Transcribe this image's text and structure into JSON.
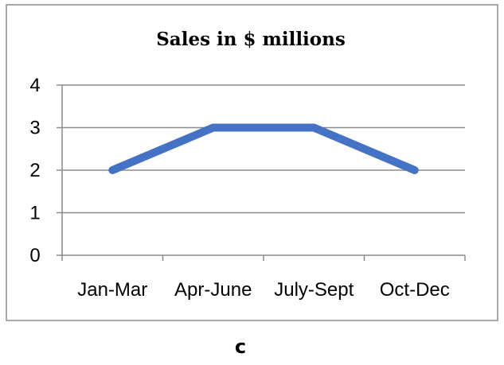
{
  "chart_data": {
    "type": "line",
    "title": "Sales in $ millions",
    "categories": [
      "Jan-Mar",
      "Apr-June",
      "July-Sept",
      "Oct-Dec"
    ],
    "series": [
      {
        "values": [
          2,
          3,
          3,
          2
        ],
        "color": "#4472c4"
      }
    ],
    "yticks": [
      "0",
      "1",
      "2",
      "3",
      "4"
    ],
    "ylim": [
      0,
      4
    ],
    "grid": true,
    "legend": "none",
    "xlabel": "",
    "ylabel": ""
  },
  "caption": "c",
  "colors": {
    "line": "#4472c4",
    "grid": "#8c8c8c",
    "frame": "#8c8c8c"
  }
}
